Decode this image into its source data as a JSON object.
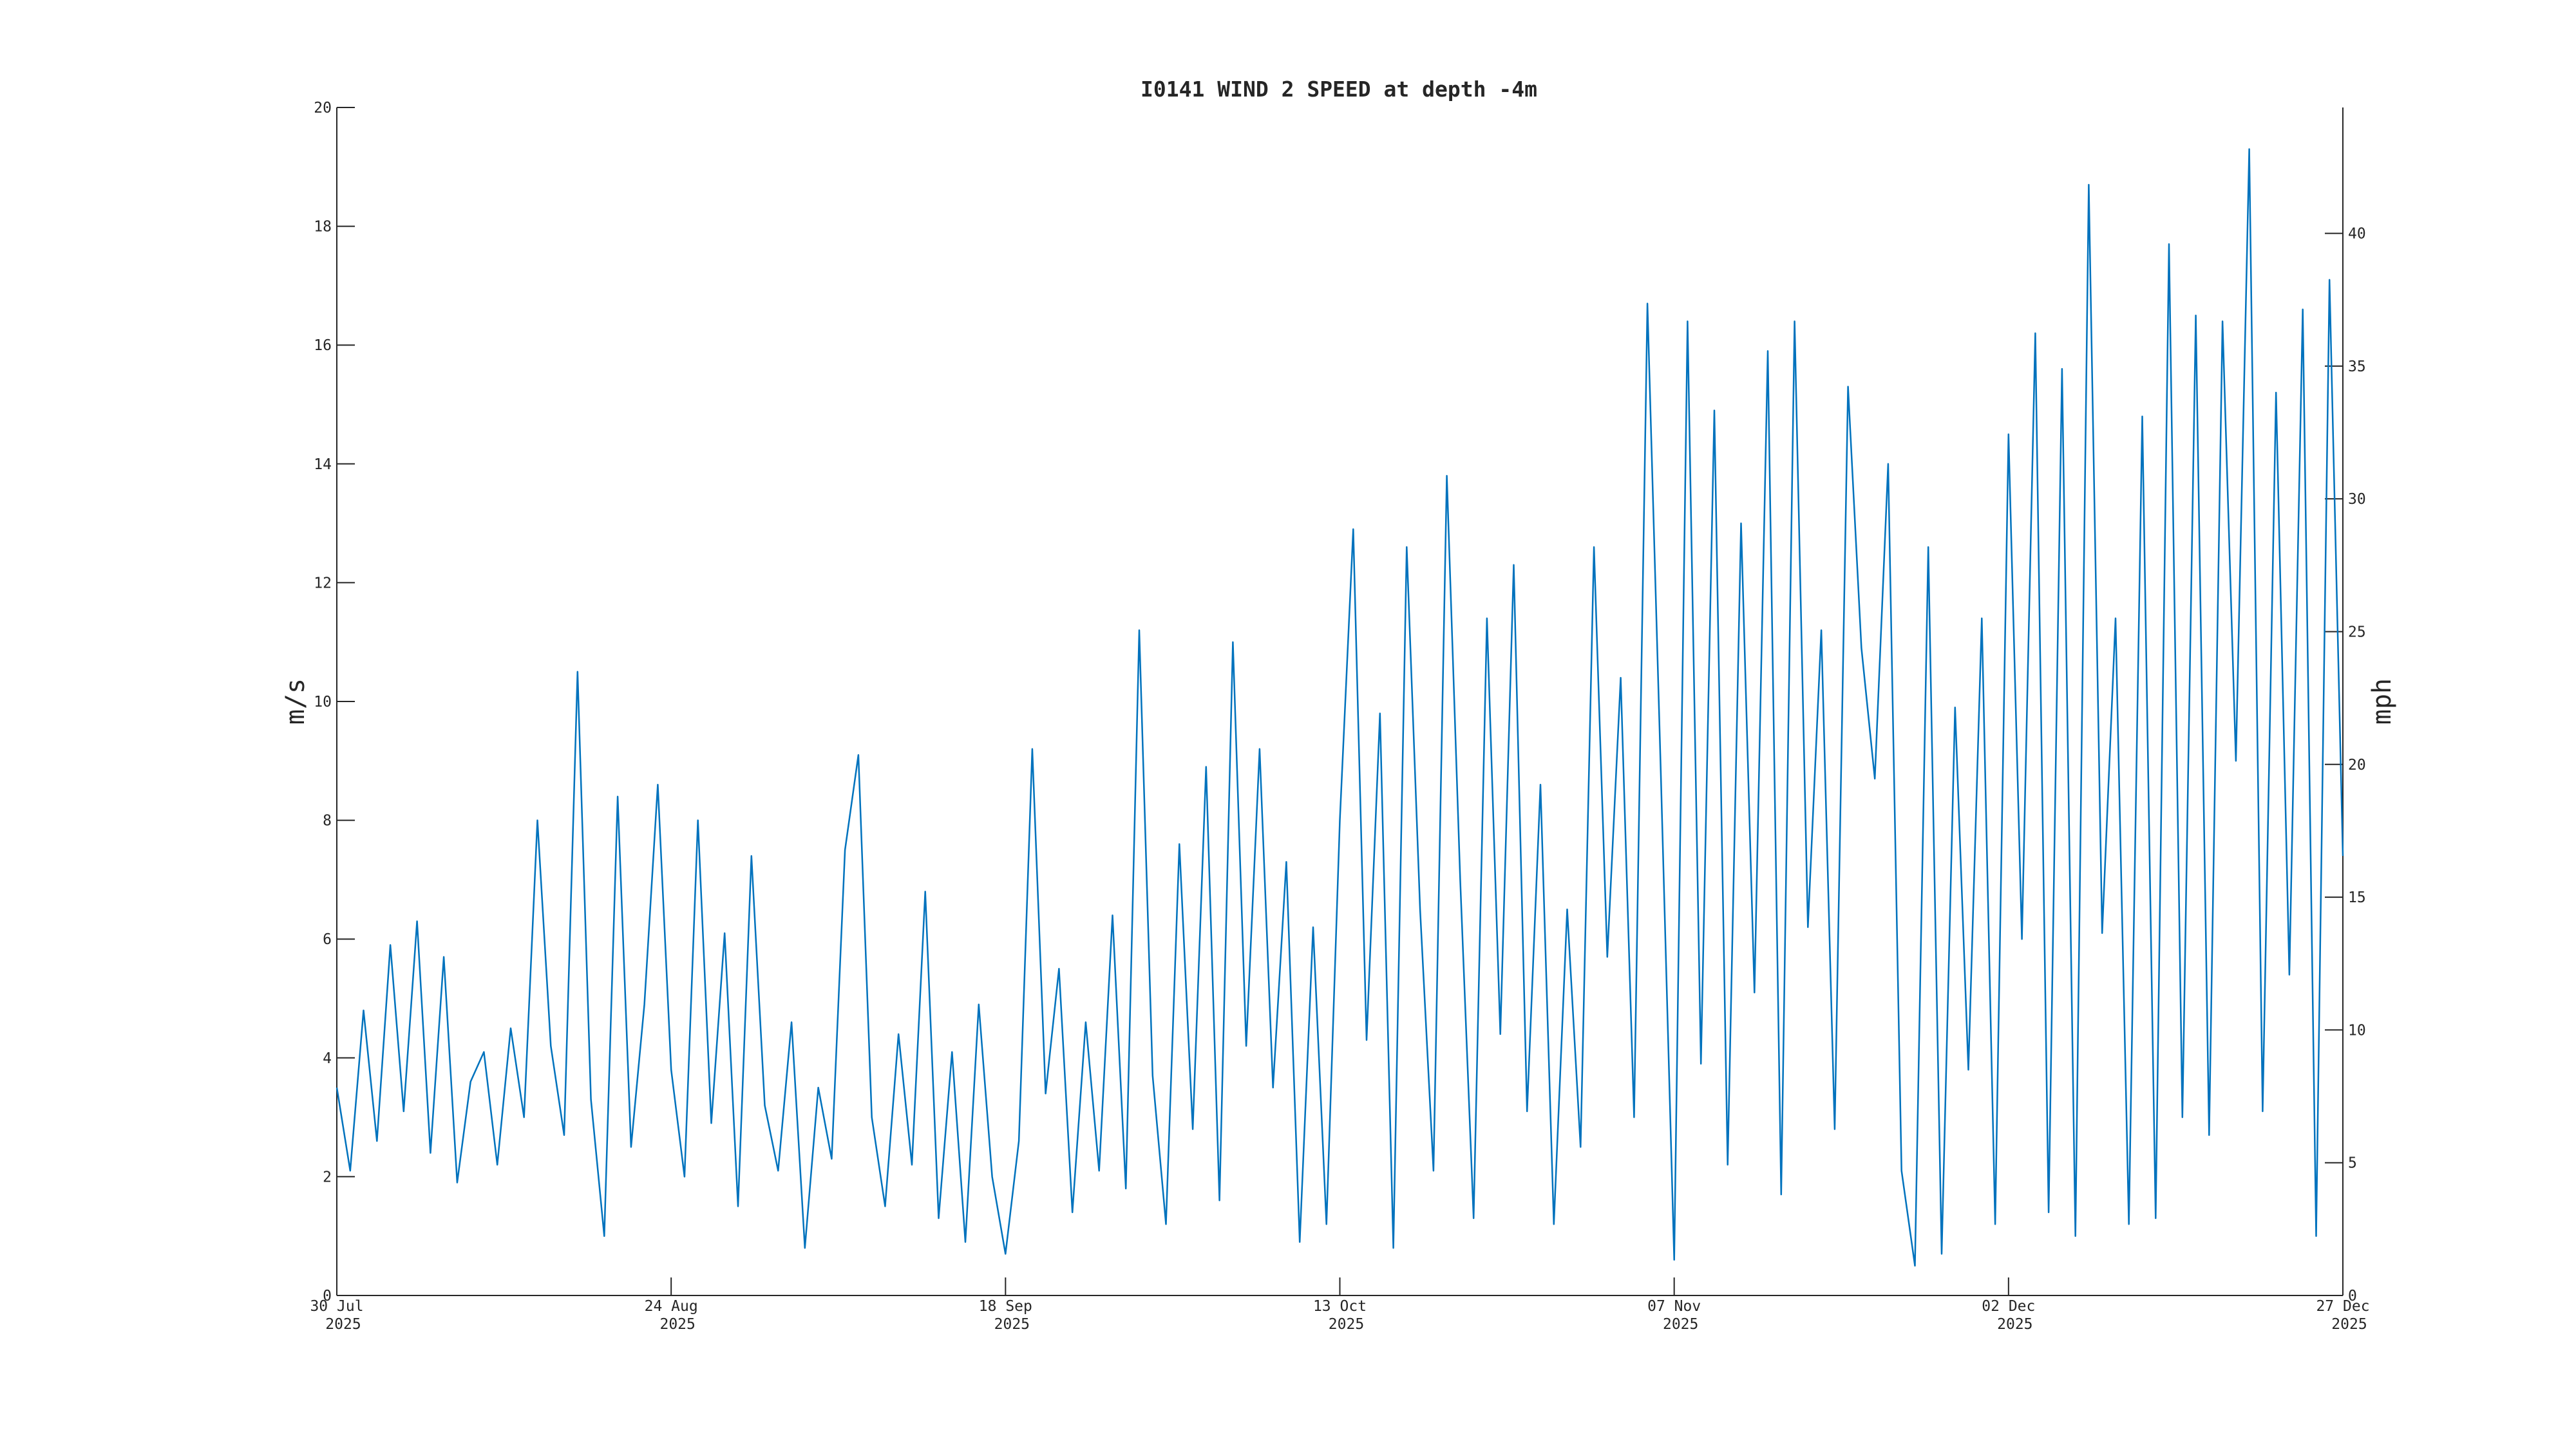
{
  "chart_data": {
    "type": "line",
    "title": "I0141 WIND 2 SPEED at depth -4m",
    "y_label": "m/s",
    "y2_label": "mph",
    "x": [
      "2025-07-30",
      "2025-07-31",
      "2025-08-01",
      "2025-08-02",
      "2025-08-03",
      "2025-08-04",
      "2025-08-05",
      "2025-08-06",
      "2025-08-07",
      "2025-08-08",
      "2025-08-09",
      "2025-08-10",
      "2025-08-11",
      "2025-08-12",
      "2025-08-13",
      "2025-08-14",
      "2025-08-15",
      "2025-08-16",
      "2025-08-17",
      "2025-08-18",
      "2025-08-19",
      "2025-08-20",
      "2025-08-21",
      "2025-08-22",
      "2025-08-23",
      "2025-08-24",
      "2025-08-25",
      "2025-08-26",
      "2025-08-27",
      "2025-08-28",
      "2025-08-29",
      "2025-08-30",
      "2025-08-31",
      "2025-09-01",
      "2025-09-02",
      "2025-09-03",
      "2025-09-04",
      "2025-09-05",
      "2025-09-06",
      "2025-09-07",
      "2025-09-08",
      "2025-09-09",
      "2025-09-10",
      "2025-09-11",
      "2025-09-12",
      "2025-09-13",
      "2025-09-14",
      "2025-09-15",
      "2025-09-16",
      "2025-09-17",
      "2025-09-18",
      "2025-09-19",
      "2025-09-20",
      "2025-09-21",
      "2025-09-22",
      "2025-09-23",
      "2025-09-24",
      "2025-09-25",
      "2025-09-26",
      "2025-09-27",
      "2025-09-28",
      "2025-09-29",
      "2025-09-30",
      "2025-10-01",
      "2025-10-02",
      "2025-10-03",
      "2025-10-04",
      "2025-10-05",
      "2025-10-06",
      "2025-10-07",
      "2025-10-08",
      "2025-10-09",
      "2025-10-10",
      "2025-10-11",
      "2025-10-12",
      "2025-10-13",
      "2025-10-14",
      "2025-10-15",
      "2025-10-16",
      "2025-10-17",
      "2025-10-18",
      "2025-10-19",
      "2025-10-20",
      "2025-10-21",
      "2025-10-22",
      "2025-10-23",
      "2025-10-24",
      "2025-10-25",
      "2025-10-26",
      "2025-10-27",
      "2025-10-28",
      "2025-10-29",
      "2025-10-30",
      "2025-10-31",
      "2025-11-01",
      "2025-11-02",
      "2025-11-03",
      "2025-11-04",
      "2025-11-05",
      "2025-11-06",
      "2025-11-07",
      "2025-11-08",
      "2025-11-09",
      "2025-11-10",
      "2025-11-11",
      "2025-11-12",
      "2025-11-13",
      "2025-11-14",
      "2025-11-15",
      "2025-11-16",
      "2025-11-17",
      "2025-11-18",
      "2025-11-19",
      "2025-11-20",
      "2025-11-21",
      "2025-11-22",
      "2025-11-23",
      "2025-11-24",
      "2025-11-25",
      "2025-11-26",
      "2025-11-27",
      "2025-11-28",
      "2025-11-29",
      "2025-11-30",
      "2025-12-01",
      "2025-12-02",
      "2025-12-03",
      "2025-12-04",
      "2025-12-05",
      "2025-12-06",
      "2025-12-07",
      "2025-12-08",
      "2025-12-09",
      "2025-12-10",
      "2025-12-11",
      "2025-12-12",
      "2025-12-13",
      "2025-12-14",
      "2025-12-15",
      "2025-12-16",
      "2025-12-17",
      "2025-12-18",
      "2025-12-19",
      "2025-12-20",
      "2025-12-21",
      "2025-12-22",
      "2025-12-23",
      "2025-12-24",
      "2025-12-25",
      "2025-12-26",
      "2025-12-27"
    ],
    "series": [
      {
        "name": "WIND 2 SPEED",
        "color": "#0072bd",
        "values": [
          3.5,
          2.1,
          4.8,
          2.6,
          5.9,
          3.1,
          6.3,
          2.4,
          5.7,
          1.9,
          3.6,
          4.1,
          2.2,
          4.5,
          3.0,
          8.0,
          4.2,
          2.7,
          10.5,
          3.3,
          1.0,
          8.4,
          2.5,
          4.9,
          8.6,
          3.8,
          2.0,
          8.0,
          2.9,
          6.1,
          1.5,
          7.4,
          3.2,
          2.1,
          4.6,
          0.8,
          3.5,
          2.3,
          7.5,
          9.1,
          3.0,
          1.5,
          4.4,
          2.2,
          6.8,
          1.3,
          4.1,
          0.9,
          4.9,
          2.0,
          0.7,
          2.6,
          9.2,
          3.4,
          5.5,
          1.4,
          4.6,
          2.1,
          6.4,
          1.8,
          11.2,
          3.7,
          1.2,
          7.6,
          2.8,
          8.9,
          1.6,
          11.0,
          4.2,
          9.2,
          3.5,
          7.3,
          0.9,
          6.2,
          1.2,
          8.0,
          12.9,
          4.3,
          9.8,
          0.8,
          12.6,
          6.5,
          2.1,
          13.8,
          7.0,
          1.3,
          11.4,
          4.4,
          12.3,
          3.1,
          8.6,
          1.2,
          6.5,
          2.5,
          12.6,
          5.7,
          10.4,
          3.0,
          16.7,
          8.8,
          0.6,
          16.4,
          3.9,
          14.9,
          2.2,
          13.0,
          5.1,
          15.9,
          1.7,
          16.4,
          6.2,
          11.2,
          2.8,
          15.3,
          10.9,
          8.7,
          14.0,
          2.1,
          0.5,
          12.6,
          0.7,
          9.9,
          3.8,
          11.4,
          1.2,
          14.5,
          6.0,
          16.2,
          1.4,
          15.6,
          1.0,
          18.7,
          6.1,
          11.4,
          1.2,
          14.8,
          1.3,
          17.7,
          3.0,
          16.5,
          2.7,
          16.4,
          9.0,
          19.3,
          3.1,
          15.2,
          5.4,
          16.6,
          1.0,
          17.1,
          7.4
        ]
      }
    ],
    "xlim": [
      "2025-07-30",
      "2025-12-27"
    ],
    "xticks": [
      {
        "value": "2025-07-30",
        "label": [
          "30 Jul",
          "2025"
        ]
      },
      {
        "value": "2025-08-24",
        "label": [
          "24 Aug",
          "2025"
        ]
      },
      {
        "value": "2025-09-18",
        "label": [
          "18 Sep",
          "2025"
        ]
      },
      {
        "value": "2025-10-13",
        "label": [
          "13 Oct",
          "2025"
        ]
      },
      {
        "value": "2025-11-07",
        "label": [
          "07 Nov",
          "2025"
        ]
      },
      {
        "value": "2025-12-02",
        "label": [
          "02 Dec",
          "2025"
        ]
      },
      {
        "value": "2025-12-27",
        "label": [
          "27 Dec",
          "2025"
        ]
      }
    ],
    "ylim": [
      0,
      20
    ],
    "yticks": [
      0,
      2,
      4,
      6,
      8,
      10,
      12,
      14,
      16,
      18,
      20
    ],
    "y2lim": [
      0,
      44.74
    ],
    "y2ticks": [
      0,
      5,
      10,
      15,
      20,
      25,
      30,
      35,
      40
    ],
    "grid": false
  }
}
